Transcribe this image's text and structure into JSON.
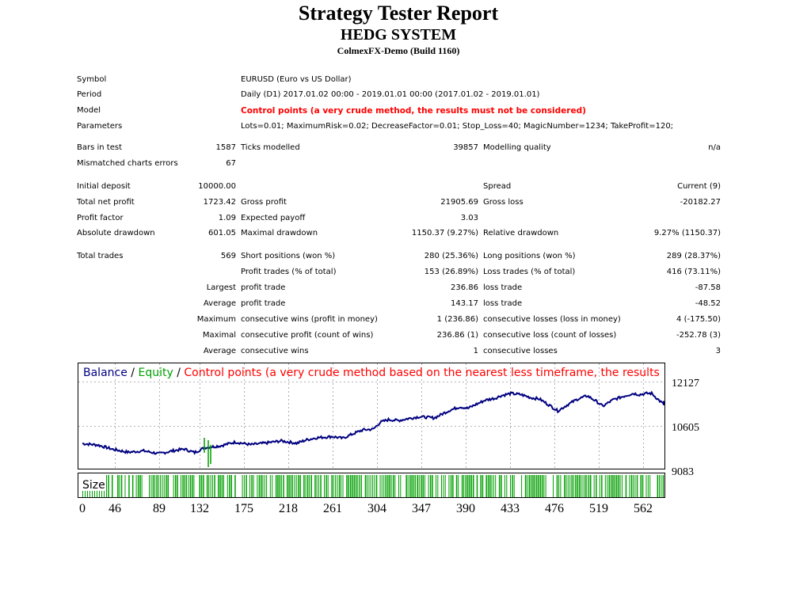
{
  "report": {
    "title": "Strategy Tester Report",
    "subtitle": "HEDG SYSTEM",
    "build": "ColmexFX-Demo (Build 1160)"
  },
  "info": [
    {
      "label": "Symbol",
      "value": "EURUSD (Euro vs US Dollar)"
    },
    {
      "label": "Period",
      "value": "Daily (D1) 2017.01.02 00:00 - 2019.01.01 00:00 (2017.01.02 - 2019.01.01)"
    },
    {
      "label": "Model",
      "value": "Control points (a very crude method, the results must not be considered)"
    },
    {
      "label": "Parameters",
      "value": "Lots=0.01; MaximumRisk=0.02; DecreaseFactor=0.01; Stop_Loss=40; MagicNumber=1234; TakeProfit=120;"
    }
  ],
  "bars": {
    "bars_in_test_label": "Bars in test",
    "bars_in_test": "1587",
    "ticks_label": "Ticks modelled",
    "ticks": "39857",
    "quality_label": "Modelling quality",
    "quality": "n/a",
    "mismatch_label": "Mismatched charts errors",
    "mismatch": "67"
  },
  "financial": {
    "initial_deposit_label": "Initial deposit",
    "initial_deposit": "10000.00",
    "spread_label": "Spread",
    "spread": "Current (9)",
    "net_profit_label": "Total net profit",
    "net_profit": "1723.42",
    "gross_profit_label": "Gross profit",
    "gross_profit": "21905.69",
    "gross_loss_label": "Gross loss",
    "gross_loss": "-20182.27",
    "profit_factor_label": "Profit factor",
    "profit_factor": "1.09",
    "expected_payoff_label": "Expected payoff",
    "expected_payoff": "3.03",
    "abs_drawdown_label": "Absolute drawdown",
    "abs_drawdown": "601.05",
    "max_drawdown_label": "Maximal drawdown",
    "max_drawdown": "1150.37 (9.27%)",
    "rel_drawdown_label": "Relative drawdown",
    "rel_drawdown": "9.27% (1150.37)"
  },
  "trades": {
    "total_label": "Total trades",
    "total": "569",
    "short_label": "Short positions (won %)",
    "short": "280 (25.36%)",
    "long_label": "Long positions (won %)",
    "long": "289 (28.37%)",
    "profit_trades_label": "Profit trades (% of total)",
    "profit_trades": "153 (26.89%)",
    "loss_trades_label": "Loss trades (% of total)",
    "loss_trades": "416 (73.11%)",
    "rows": [
      {
        "prefix": "Largest",
        "l1": "profit trade",
        "v1": "236.86",
        "l2": "loss trade",
        "v2": "-87.58"
      },
      {
        "prefix": "Average",
        "l1": "profit trade",
        "v1": "143.17",
        "l2": "loss trade",
        "v2": "-48.52"
      },
      {
        "prefix": "Maximum",
        "l1": "consecutive wins (profit in money)",
        "v1": "1 (236.86)",
        "l2": "consecutive losses (loss in money)",
        "v2": "4 (-175.50)"
      },
      {
        "prefix": "Maximal",
        "l1": "consecutive profit (count of wins)",
        "v1": "236.86 (1)",
        "l2": "consecutive loss (count of losses)",
        "v2": "-252.78 (3)"
      },
      {
        "prefix": "Average",
        "l1": "consecutive wins",
        "v1": "1",
        "l2": "consecutive losses",
        "v2": "3"
      }
    ]
  },
  "chart_data": {
    "type": "line",
    "legend": {
      "balance": "Balance",
      "sep1": " / ",
      "equity": "Equity",
      "sep2": " / ",
      "model": "Control points (a very crude method based on the nearest less timeframe, the results"
    },
    "size_label": "Size",
    "y_ticks": [
      "12127",
      "10605",
      "9083"
    ],
    "x_ticks": [
      "0",
      "46",
      "89",
      "132",
      "175",
      "218",
      "261",
      "304",
      "347",
      "390",
      "433",
      "476",
      "519",
      "562"
    ],
    "ylim": [
      9083,
      12127
    ],
    "xlim": [
      0,
      569
    ],
    "balance": [
      [
        0,
        10000
      ],
      [
        15,
        9950
      ],
      [
        30,
        9800
      ],
      [
        45,
        9700
      ],
      [
        60,
        9750
      ],
      [
        75,
        9650
      ],
      [
        90,
        9760
      ],
      [
        100,
        9810
      ],
      [
        110,
        9690
      ],
      [
        120,
        9860
      ],
      [
        135,
        9920
      ],
      [
        150,
        10050
      ],
      [
        165,
        9960
      ],
      [
        180,
        10020
      ],
      [
        195,
        10090
      ],
      [
        210,
        10010
      ],
      [
        220,
        10130
      ],
      [
        230,
        10200
      ],
      [
        245,
        10240
      ],
      [
        255,
        10180
      ],
      [
        265,
        10330
      ],
      [
        275,
        10470
      ],
      [
        285,
        10490
      ],
      [
        292,
        10730
      ],
      [
        300,
        10820
      ],
      [
        310,
        10790
      ],
      [
        320,
        10860
      ],
      [
        330,
        10920
      ],
      [
        345,
        10880
      ],
      [
        360,
        11140
      ],
      [
        370,
        11260
      ],
      [
        378,
        11210
      ],
      [
        385,
        11330
      ],
      [
        395,
        11490
      ],
      [
        405,
        11560
      ],
      [
        410,
        11640
      ],
      [
        420,
        11720
      ],
      [
        430,
        11680
      ],
      [
        440,
        11570
      ],
      [
        448,
        11530
      ],
      [
        458,
        11310
      ],
      [
        466,
        11120
      ],
      [
        475,
        11320
      ],
      [
        485,
        11520
      ],
      [
        495,
        11640
      ],
      [
        505,
        11420
      ],
      [
        510,
        11280
      ],
      [
        520,
        11500
      ],
      [
        532,
        11640
      ],
      [
        540,
        11720
      ],
      [
        546,
        11680
      ],
      [
        553,
        11720
      ],
      [
        558,
        11720
      ],
      [
        565,
        11490
      ],
      [
        570,
        11340
      ],
      [
        577,
        11320
      ],
      [
        583,
        11410
      ],
      [
        588,
        11430
      ]
    ],
    "colors": {
      "balance": "#000080",
      "equity": "#00a000",
      "model": "#ff0000",
      "grid": "#9a9a9a"
    }
  }
}
